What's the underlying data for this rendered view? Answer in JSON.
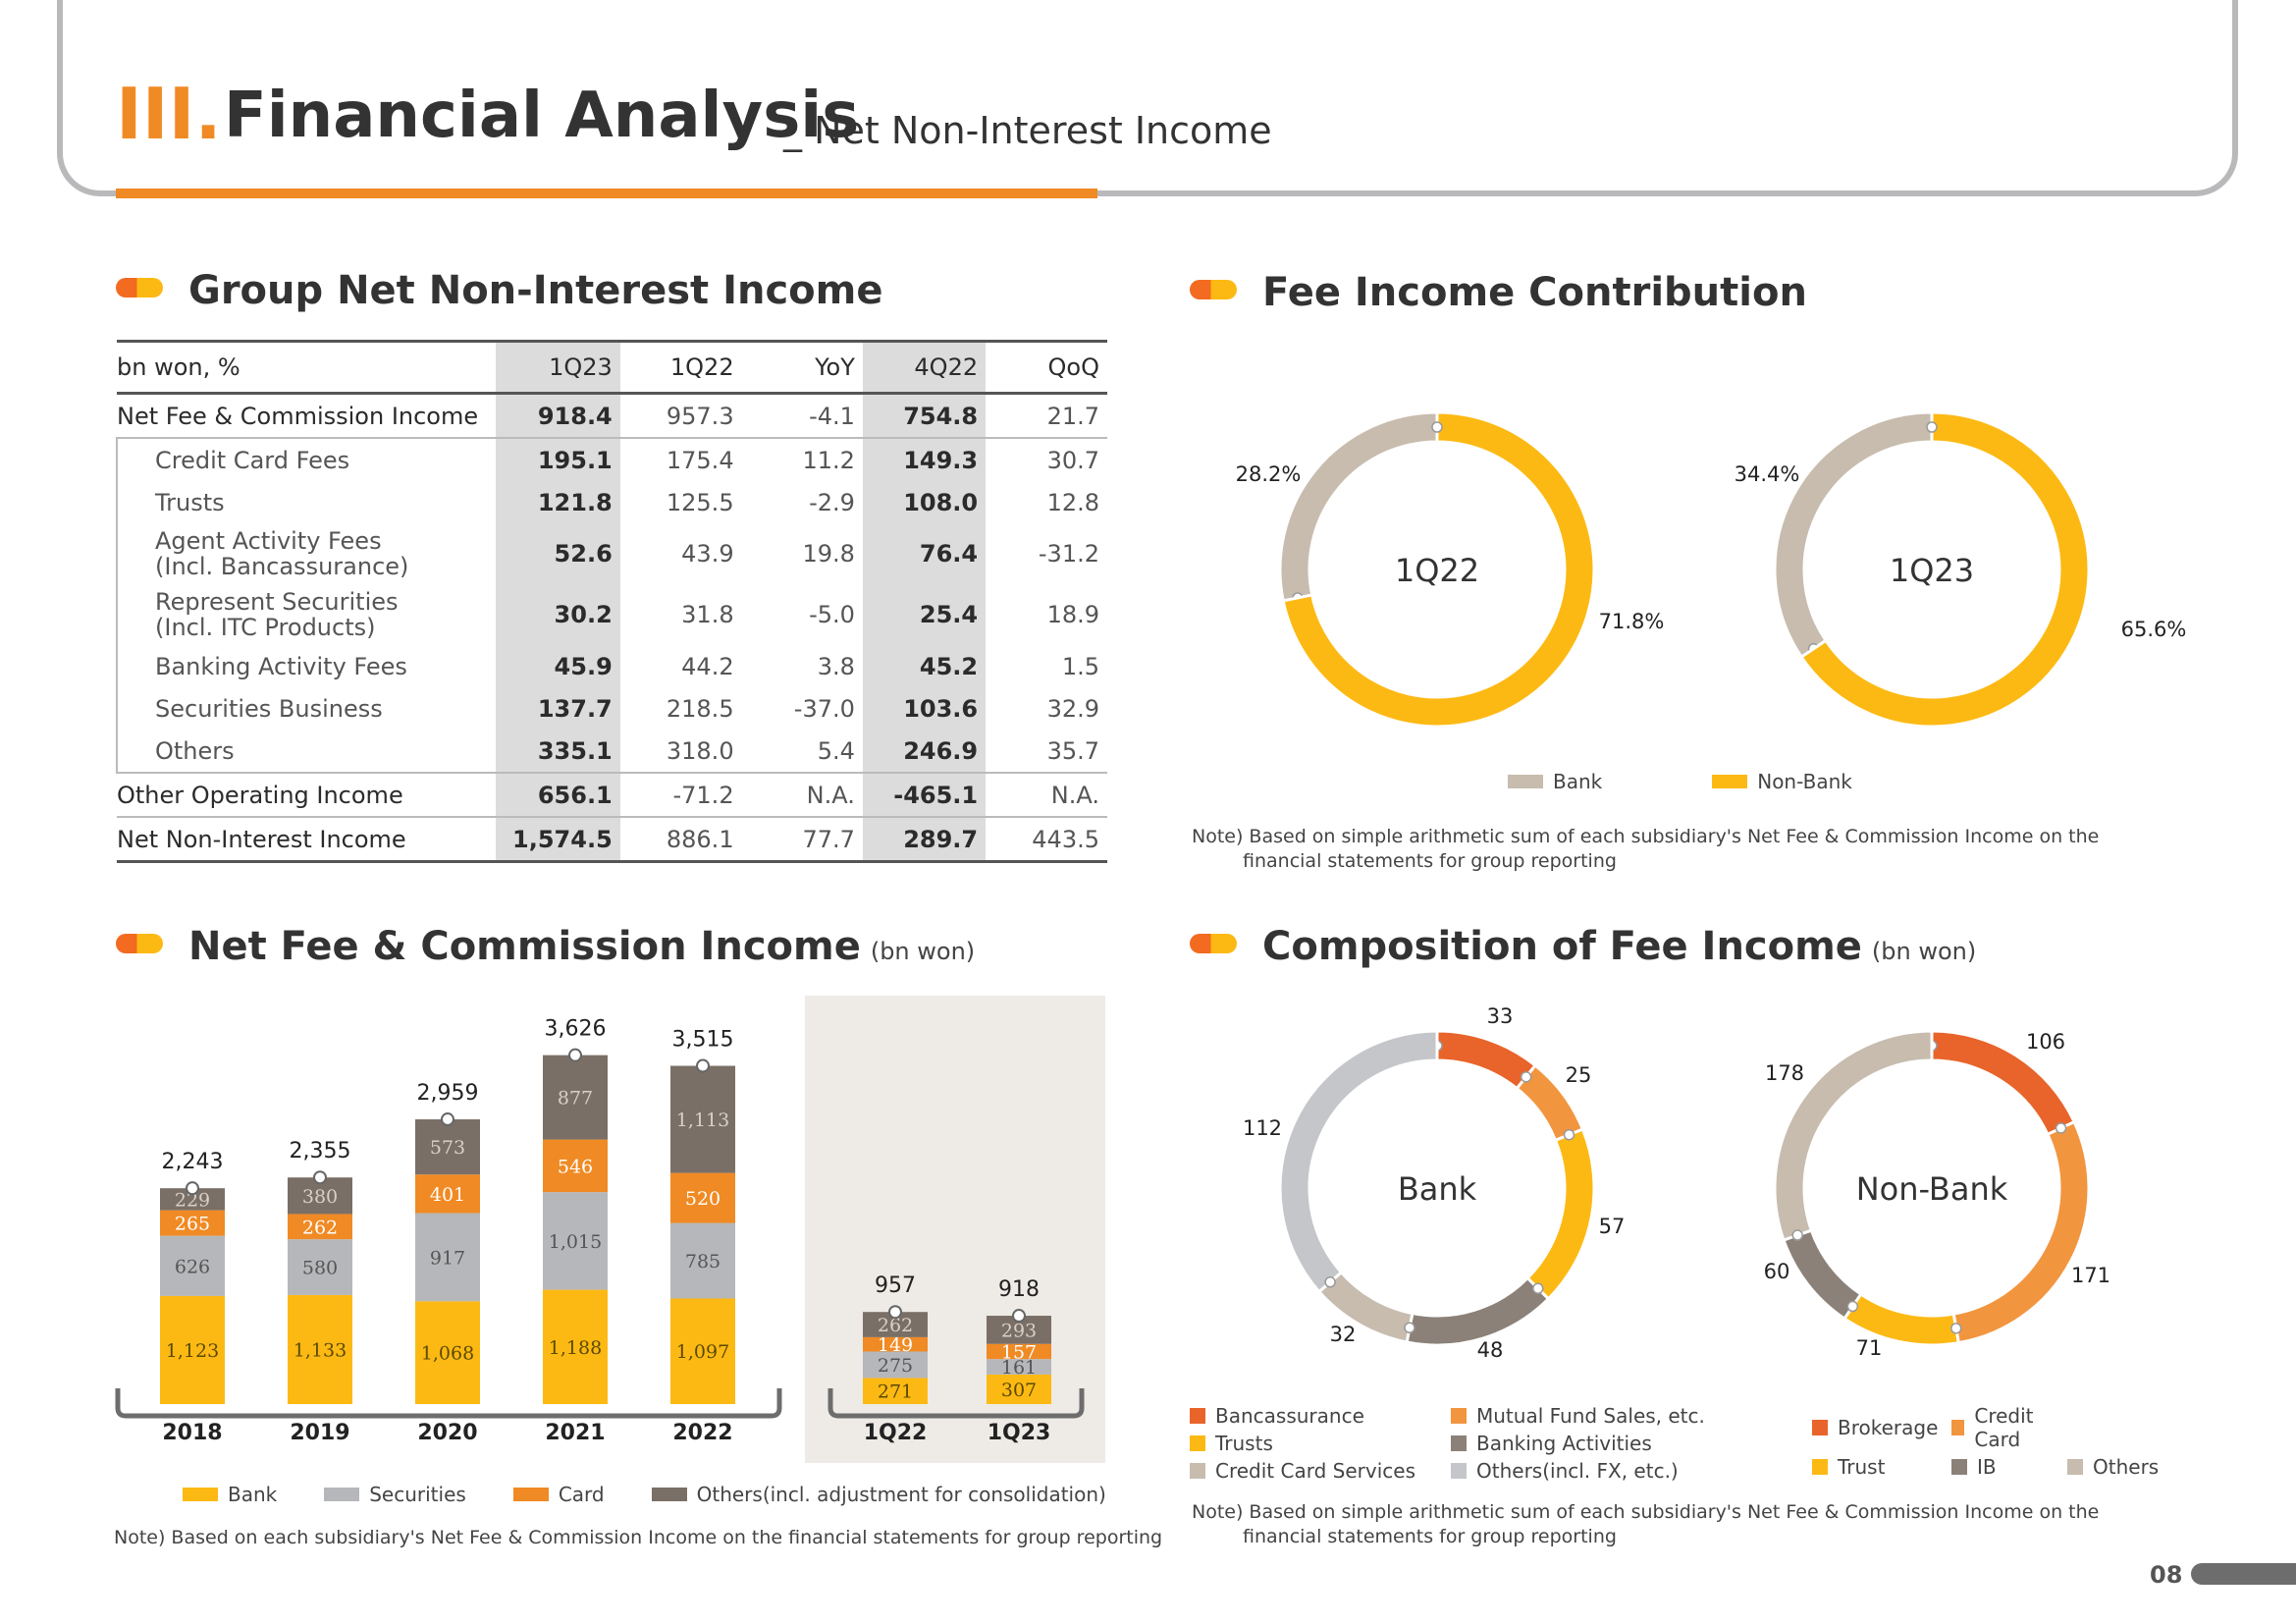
{
  "header": {
    "roman": "III.",
    "title": "Financial Analysis",
    "subtitle": "_ Net Non-Interest Income"
  },
  "colors": {
    "bank": "#fdb913",
    "securities": "#b6b7ba",
    "card": "#f08a24",
    "others": "#7a6f66",
    "beige": "#c7bcae",
    "orange_dark": "#e8642a",
    "orange_light": "#f2953f",
    "orange": "#f08a24"
  },
  "table_section": {
    "title": "Group Net Non-Interest Income",
    "columns": [
      "bn won, %",
      "1Q23",
      "1Q22",
      "YoY",
      "4Q22",
      "QoQ"
    ],
    "rows": [
      {
        "label": "Net Fee & Commission Income",
        "sub": false,
        "values": [
          "918.4",
          "957.3",
          "-4.1",
          "754.8",
          "21.7"
        ]
      },
      {
        "label": "Credit Card Fees",
        "sub": true,
        "values": [
          "195.1",
          "175.4",
          "11.2",
          "149.3",
          "30.7"
        ]
      },
      {
        "label": "Trusts",
        "sub": true,
        "values": [
          "121.8",
          "125.5",
          "-2.9",
          "108.0",
          "12.8"
        ]
      },
      {
        "label": "Agent Activity Fees\n(Incl. Bancassurance)",
        "sub": true,
        "values": [
          "52.6",
          "43.9",
          "19.8",
          "76.4",
          "-31.2"
        ]
      },
      {
        "label": "Represent Securities\n(Incl. ITC Products)",
        "sub": true,
        "values": [
          "30.2",
          "31.8",
          "-5.0",
          "25.4",
          "18.9"
        ]
      },
      {
        "label": "Banking Activity Fees",
        "sub": true,
        "values": [
          "45.9",
          "44.2",
          "3.8",
          "45.2",
          "1.5"
        ]
      },
      {
        "label": "Securities Business",
        "sub": true,
        "values": [
          "137.7",
          "218.5",
          "-37.0",
          "103.6",
          "32.9"
        ]
      },
      {
        "label": "Others",
        "sub": true,
        "values": [
          "335.1",
          "318.0",
          "5.4",
          "246.9",
          "35.7"
        ]
      },
      {
        "label": "Other Operating Income",
        "sub": false,
        "values": [
          "656.1",
          "-71.2",
          "N.A.",
          "-465.1",
          "N.A."
        ]
      },
      {
        "label": "Net Non-Interest Income",
        "sub": false,
        "values": [
          "1,574.5",
          "886.1",
          "77.7",
          "289.7",
          "443.5"
        ]
      }
    ]
  },
  "fee_contribution": {
    "title": "Fee Income Contribution",
    "note": "Note) Based on simple arithmetic sum of each subsidiary's Net Fee & Commission Income on the financial statements for group reporting",
    "legend": [
      "Bank",
      "Non-Bank"
    ]
  },
  "net_fee_section": {
    "title": "Net Fee & Commission Income",
    "unit": "(bn won)",
    "legend": [
      "Bank",
      "Securities",
      "Card",
      "Others(incl. adjustment for consolidation)"
    ],
    "note": "Note) Based on each subsidiary's Net Fee & Commission Income on the financial statements for group reporting"
  },
  "composition_section": {
    "title": "Composition of Fee Income",
    "unit": "(bn won)",
    "bank_legend": [
      "Bancassurance",
      "Mutual Fund Sales, etc.",
      "Trusts",
      "Banking Activities",
      "Credit Card Services",
      "Others(incl. FX, etc.)"
    ],
    "nonbank_legend": [
      "Brokerage",
      "Credit Card",
      "Trust",
      "IB",
      "Others"
    ],
    "note": "Note) Based on simple arithmetic sum of each subsidiary's Net Fee & Commission Income on the financial statements for group reporting"
  },
  "page_number": "08",
  "chart_data": [
    {
      "type": "bar",
      "stacked": true,
      "title": "Net Fee & Commission Income",
      "categories": [
        "2018",
        "2019",
        "2020",
        "2021",
        "2022",
        "1Q22",
        "1Q23"
      ],
      "series": [
        {
          "name": "Bank",
          "values": [
            1123,
            1133,
            1068,
            1188,
            1097,
            271,
            307
          ],
          "labels": [
            "1,123",
            "1,133",
            "1,068",
            "1,188",
            "1,097",
            "271",
            "307"
          ]
        },
        {
          "name": "Securities",
          "values": [
            626,
            580,
            917,
            1015,
            785,
            275,
            161
          ],
          "labels": [
            "626",
            "580",
            "917",
            "1,015",
            "785",
            "275",
            "161"
          ]
        },
        {
          "name": "Card",
          "values": [
            265,
            262,
            401,
            546,
            520,
            149,
            157
          ],
          "labels": [
            "265",
            "262",
            "401",
            "546",
            "520",
            "149",
            "157"
          ]
        },
        {
          "name": "Others(incl. adjustment for consolidation)",
          "values": [
            229,
            380,
            573,
            877,
            1113,
            262,
            293
          ],
          "labels": [
            "229",
            "380",
            "573",
            "877",
            "1,113",
            "262",
            "293"
          ]
        }
      ],
      "totals": [
        "2,243",
        "2,355",
        "2,959",
        "3,626",
        "3,515",
        "957",
        "918"
      ]
    },
    {
      "type": "pie",
      "title": "1Q22",
      "slices": [
        {
          "name": "Bank",
          "value": 28.2,
          "label": "28.2%"
        },
        {
          "name": "Non-Bank",
          "value": 71.8,
          "label": "71.8%"
        }
      ]
    },
    {
      "type": "pie",
      "title": "1Q23",
      "slices": [
        {
          "name": "Bank",
          "value": 34.4,
          "label": "34.4%"
        },
        {
          "name": "Non-Bank",
          "value": 65.6,
          "label": "65.6%"
        }
      ]
    },
    {
      "type": "pie",
      "title": "Bank",
      "slices": [
        {
          "name": "Bancassurance",
          "value": 33,
          "label": "33"
        },
        {
          "name": "Mutual Fund Sales, etc.",
          "value": 25,
          "label": "25"
        },
        {
          "name": "Trusts",
          "value": 57,
          "label": "57"
        },
        {
          "name": "Banking Activities",
          "value": 48,
          "label": "48"
        },
        {
          "name": "Credit Card Services",
          "value": 32,
          "label": "32"
        },
        {
          "name": "Others(incl. FX, etc.)",
          "value": 112,
          "label": "112"
        }
      ]
    },
    {
      "type": "pie",
      "title": "Non-Bank",
      "slices": [
        {
          "name": "Brokerage",
          "value": 106,
          "label": "106"
        },
        {
          "name": "Credit Card",
          "value": 171,
          "label": "171"
        },
        {
          "name": "Trust",
          "value": 71,
          "label": "71"
        },
        {
          "name": "IB",
          "value": 60,
          "label": "60"
        },
        {
          "name": "Others",
          "value": 178,
          "label": "178"
        }
      ]
    }
  ]
}
